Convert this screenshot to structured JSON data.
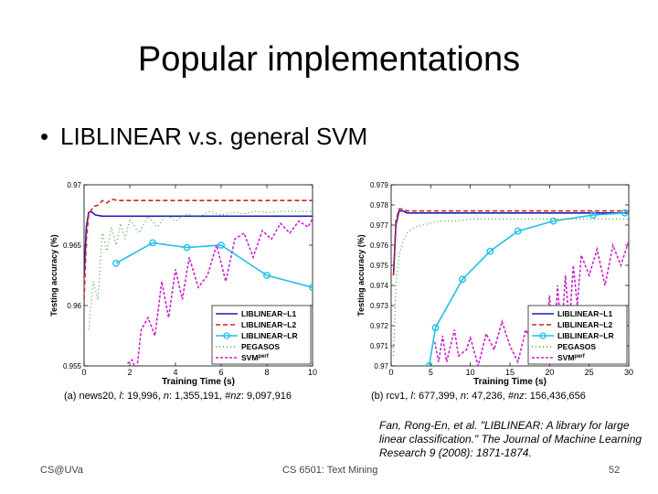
{
  "slide": {
    "title": "Popular implementations",
    "bullet": "LIBLINEAR v.s. general SVM",
    "bullet_symbol": "•",
    "citation": "Fan, Rong-En, et al. \"LIBLINEAR: A library for large linear classification.\" The Journal of Machine Learning Research 9 (2008): 1871-1874.",
    "footer_left": "CS@UVa",
    "footer_mid": "CS 6501: Text Mining",
    "page_number": "52"
  },
  "chart_data": [
    {
      "type": "line",
      "caption_prefix": "(a) news20,",
      "caption_l": "l",
      "caption_l_val": "19,996,",
      "caption_n": "n",
      "caption_n_val": "1,355,191,",
      "caption_nnz": "#nz",
      "caption_nnz_val": "9,097,916",
      "xlabel": "Training Time (s)",
      "ylabel": "Testing accuracy (%)",
      "xlim": [
        0,
        10
      ],
      "ylim": [
        0.955,
        0.97
      ],
      "xticks": [
        0,
        2,
        4,
        6,
        8,
        10
      ],
      "yticks": [
        0.955,
        0.96,
        0.965,
        0.97
      ],
      "ytick_labels": [
        "0.955",
        "0.96",
        "0.965",
        "0.97"
      ],
      "legend_position": "bottom-right",
      "series": [
        {
          "name": "LIBLINEAR−L1",
          "color": "#1f1fb4",
          "dash": "",
          "marker": "none",
          "x": [
            0,
            0.1,
            0.2,
            0.3,
            0.5,
            0.8,
            1.2,
            2,
            4,
            6,
            8,
            10
          ],
          "y": [
            0.9625,
            0.9665,
            0.9677,
            0.9678,
            0.9675,
            0.9674,
            0.9674,
            0.9674,
            0.9674,
            0.9674,
            0.9674,
            0.9674
          ]
        },
        {
          "name": "LIBLINEAR−L2",
          "color": "#d42020",
          "dash": "5,3",
          "marker": "none",
          "x": [
            0,
            0.1,
            0.2,
            0.4,
            0.6,
            0.8,
            1.0,
            1.2,
            1.5,
            2,
            3,
            4,
            6,
            8,
            10
          ],
          "y": [
            0.9605,
            0.9655,
            0.9675,
            0.9682,
            0.9683,
            0.9687,
            0.9685,
            0.9688,
            0.9687,
            0.9687,
            0.9687,
            0.9687,
            0.9687,
            0.9687,
            0.9687
          ]
        },
        {
          "name": "LIBLINEAR−LR",
          "color": "#22c0e8",
          "dash": "",
          "marker": "circle",
          "x": [
            1.4,
            3.0,
            4.5,
            6.0,
            8.0,
            10.0
          ],
          "y": [
            0.9635,
            0.9652,
            0.9648,
            0.965,
            0.9625,
            0.9615
          ]
        },
        {
          "name": "PEGASOS",
          "color": "#33aa33",
          "dash": "1,3",
          "marker": "none",
          "x": [
            0.2,
            0.4,
            0.6,
            0.8,
            1.0,
            1.2,
            1.4,
            1.6,
            1.8,
            2.0,
            2.4,
            2.8,
            3.2,
            3.6,
            4.0,
            4.5,
            5.0,
            5.5,
            6.0,
            6.5,
            7.0,
            7.5,
            8.0,
            8.5,
            9.0,
            9.5,
            10.0
          ],
          "y": [
            0.958,
            0.962,
            0.9605,
            0.966,
            0.9645,
            0.9665,
            0.965,
            0.9668,
            0.9655,
            0.9672,
            0.966,
            0.9674,
            0.9665,
            0.9675,
            0.967,
            0.9676,
            0.9673,
            0.9678,
            0.9675,
            0.9677,
            0.9676,
            0.9678,
            0.9677,
            0.9678,
            0.9678,
            0.9678,
            0.9678
          ]
        },
        {
          "name": "SVMperf",
          "color": "#cc22cc",
          "dash": "3,2",
          "marker": "none",
          "x": [
            1.9,
            2.1,
            2.3,
            2.5,
            2.8,
            3.1,
            3.4,
            3.7,
            4.0,
            4.3,
            4.6,
            5.0,
            5.4,
            5.8,
            6.2,
            6.6,
            7.0,
            7.4,
            7.8,
            8.2,
            8.6,
            9.0,
            9.4,
            9.8,
            10.0
          ],
          "y": [
            0.9552,
            0.9555,
            0.9545,
            0.958,
            0.959,
            0.9575,
            0.962,
            0.959,
            0.963,
            0.9605,
            0.964,
            0.9615,
            0.9625,
            0.965,
            0.962,
            0.9655,
            0.966,
            0.964,
            0.9662,
            0.9655,
            0.9668,
            0.966,
            0.967,
            0.9665,
            0.9672
          ]
        }
      ]
    },
    {
      "type": "line",
      "caption_prefix": "(b) rcv1,",
      "caption_l": "l",
      "caption_l_val": "677,399,",
      "caption_n": "n",
      "caption_n_val": "47,236,",
      "caption_nnz": "#nz",
      "caption_nnz_val": "156,436,656",
      "xlabel": "Training Time (s)",
      "ylabel": "Testing accuracy (%)",
      "xlim": [
        0,
        30
      ],
      "ylim": [
        0.97,
        0.979
      ],
      "xticks": [
        0,
        5,
        10,
        15,
        20,
        25,
        30
      ],
      "yticks": [
        0.97,
        0.971,
        0.972,
        0.973,
        0.974,
        0.975,
        0.976,
        0.977,
        0.978,
        0.979
      ],
      "ytick_labels": [
        "0.97",
        "0.971",
        "0.972",
        "0.973",
        "0.974",
        "0.975",
        "0.976",
        "0.977",
        "0.978",
        "0.979"
      ],
      "legend_position": "bottom-right",
      "series": [
        {
          "name": "LIBLINEAR−L1",
          "color": "#1f1fb4",
          "dash": "",
          "marker": "none",
          "x": [
            0.3,
            0.6,
            1.0,
            1.5,
            2,
            3,
            5,
            10,
            20,
            30
          ],
          "y": [
            0.9745,
            0.977,
            0.9777,
            0.9777,
            0.9776,
            0.9776,
            0.9776,
            0.9776,
            0.9776,
            0.9776
          ]
        },
        {
          "name": "LIBLINEAR−L2",
          "color": "#d42020",
          "dash": "5,3",
          "marker": "none",
          "x": [
            0.3,
            0.6,
            1.0,
            1.5,
            2,
            3,
            5,
            10,
            20,
            30
          ],
          "y": [
            0.9745,
            0.9772,
            0.9778,
            0.9778,
            0.9777,
            0.9777,
            0.9777,
            0.9777,
            0.9777,
            0.9777
          ]
        },
        {
          "name": "LIBLINEAR−LR",
          "color": "#22c0e8",
          "dash": "",
          "marker": "circle",
          "x": [
            4.8,
            5.6,
            9.0,
            12.5,
            16.0,
            20.5,
            25.5,
            29.5
          ],
          "y": [
            0.97,
            0.9719,
            0.9743,
            0.9757,
            0.9767,
            0.9772,
            0.9775,
            0.9776
          ]
        },
        {
          "name": "PEGASOS",
          "color": "#33aa33",
          "dash": "1,3",
          "marker": "none",
          "x": [
            0.3,
            0.6,
            1.0,
            1.5,
            2.0,
            3.0,
            4.0,
            6.0,
            8.0,
            10.0,
            15.0,
            20.0,
            25.0,
            30.0
          ],
          "y": [
            0.9705,
            0.974,
            0.9755,
            0.9762,
            0.9766,
            0.9769,
            0.977,
            0.9772,
            0.9772,
            0.9773,
            0.9773,
            0.9773,
            0.9773,
            0.9773
          ]
        },
        {
          "name": "SVMperf",
          "color": "#cc22cc",
          "dash": "3,2",
          "marker": "none",
          "x": [
            5.5,
            6.0,
            6.5,
            7.0,
            8.0,
            8.5,
            9.5,
            10.0,
            11.0,
            12.0,
            13.0,
            14.0,
            15.0,
            16.0,
            17.0,
            18.0,
            19.0,
            19.5,
            20.0,
            20.5,
            21.0,
            21.5,
            22.0,
            22.5,
            23.0,
            23.5,
            24.0,
            25.0,
            26.0,
            27.0,
            28.0,
            29.0,
            30.0
          ],
          "y": [
            0.9712,
            0.9702,
            0.9715,
            0.9702,
            0.9718,
            0.9705,
            0.9708,
            0.9714,
            0.97,
            0.9716,
            0.9708,
            0.9722,
            0.971,
            0.9702,
            0.9718,
            0.971,
            0.9728,
            0.9712,
            0.9735,
            0.9702,
            0.974,
            0.9715,
            0.9745,
            0.972,
            0.975,
            0.973,
            0.9755,
            0.9745,
            0.9758,
            0.974,
            0.976,
            0.975,
            0.9762
          ]
        }
      ]
    }
  ]
}
